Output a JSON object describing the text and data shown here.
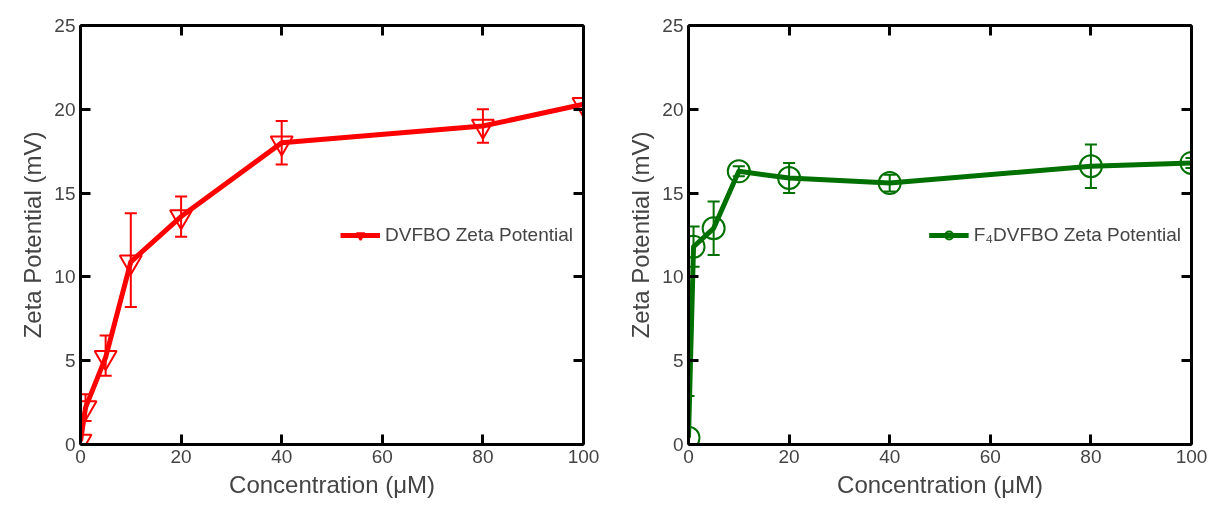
{
  "chart_data": [
    {
      "type": "line",
      "xlabel": "Concentration (μM)",
      "ylabel": "Zeta Potential (mV)",
      "x": [
        0,
        1,
        5,
        10,
        20,
        40,
        80,
        100
      ],
      "series": [
        {
          "name": "DVFBO Zeta Potential",
          "color": "#ff0000",
          "values": [
            0.2,
            2.2,
            5.2,
            10.9,
            13.6,
            18.0,
            19.0,
            20.3
          ],
          "errors": [
            null,
            0.8,
            [
              4.1,
              6.5
            ],
            [
              8.2,
              13.8
            ],
            [
              12.4,
              14.8
            ],
            [
              16.7,
              19.3
            ],
            [
              18.0,
              20.0
            ],
            null
          ]
        }
      ],
      "marker": "triangle_down",
      "xlim": [
        0,
        100
      ],
      "ylim": [
        0,
        25
      ],
      "xticks": [
        0,
        20,
        40,
        60,
        80,
        100
      ],
      "yticks": [
        0,
        5,
        10,
        15,
        20,
        25
      ],
      "grid": false,
      "legend": "right"
    },
    {
      "type": "line",
      "xlabel": "Concentration (μM)",
      "ylabel": "Zeta Potential (mV)",
      "x": [
        0,
        1,
        5,
        10,
        20,
        40,
        80,
        100
      ],
      "series": [
        {
          "name": "F₄DVFBO Zeta Potential",
          "color": "#007000",
          "values": [
            0.4,
            11.8,
            12.9,
            16.3,
            15.9,
            15.6,
            16.6,
            16.8
          ],
          "errors": [
            [
              0,
              2.9
            ],
            [
              10.6,
              13.0
            ],
            [
              11.3,
              14.5
            ],
            0.3,
            [
              15.0,
              16.8
            ],
            [
              15.1,
              16.1
            ],
            [
              15.3,
              17.9
            ],
            0.3
          ]
        }
      ],
      "marker": "circle",
      "xlim": [
        0,
        100
      ],
      "ylim": [
        0,
        25
      ],
      "xticks": [
        0,
        20,
        40,
        60,
        80,
        100
      ],
      "yticks": [
        0,
        5,
        10,
        15,
        20,
        25
      ],
      "grid": false,
      "legend": "right"
    }
  ]
}
